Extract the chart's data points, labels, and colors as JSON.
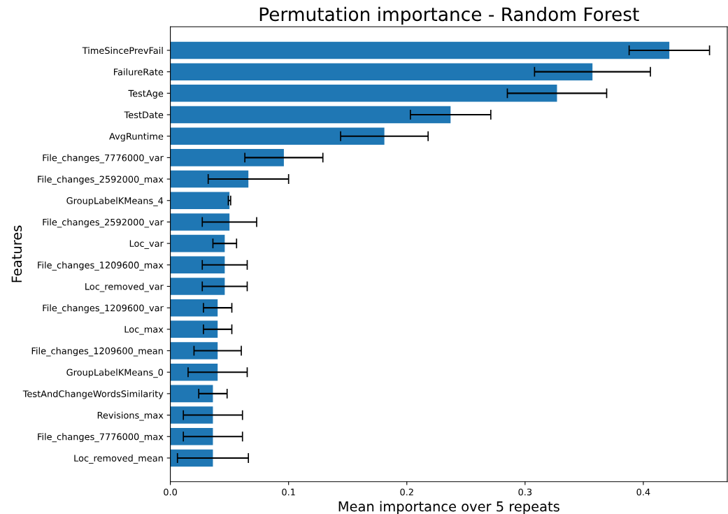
{
  "chart_data": {
    "type": "bar",
    "orientation": "horizontal",
    "title": "Permutation importance - Random Forest",
    "xlabel": "Mean importance over 5 repeats",
    "ylabel": "Features",
    "categories": [
      "TimeSincePrevFail",
      "FailureRate",
      "TestAge",
      "TestDate",
      "AvgRuntime",
      "File_changes_7776000_var",
      "File_changes_2592000_max",
      "GroupLabelKMeans_4",
      "File_changes_2592000_var",
      "Loc_var",
      "File_changes_1209600_max",
      "Loc_removed_var",
      "File_changes_1209600_var",
      "Loc_max",
      "File_changes_1209600_mean",
      "GroupLabelKMeans_0",
      "TestAndChangeWordsSimilarity",
      "Revisions_max",
      "File_changes_7776000_max",
      "Loc_removed_mean"
    ],
    "values": [
      0.422,
      0.357,
      0.327,
      0.237,
      0.181,
      0.096,
      0.066,
      0.05,
      0.05,
      0.046,
      0.046,
      0.046,
      0.04,
      0.04,
      0.04,
      0.04,
      0.036,
      0.036,
      0.036,
      0.036
    ],
    "errors": [
      0.034,
      0.049,
      0.042,
      0.034,
      0.037,
      0.033,
      0.034,
      0.001,
      0.023,
      0.01,
      0.019,
      0.019,
      0.012,
      0.012,
      0.02,
      0.025,
      0.012,
      0.025,
      0.025,
      0.03
    ],
    "color": "#1f77b4",
    "xlim": [
      0,
      0.471
    ],
    "xticks": [
      {
        "value": 0,
        "label": "0.0"
      },
      0.1,
      0.2,
      0.3,
      0.4
    ],
    "grid": false,
    "legend": false
  }
}
